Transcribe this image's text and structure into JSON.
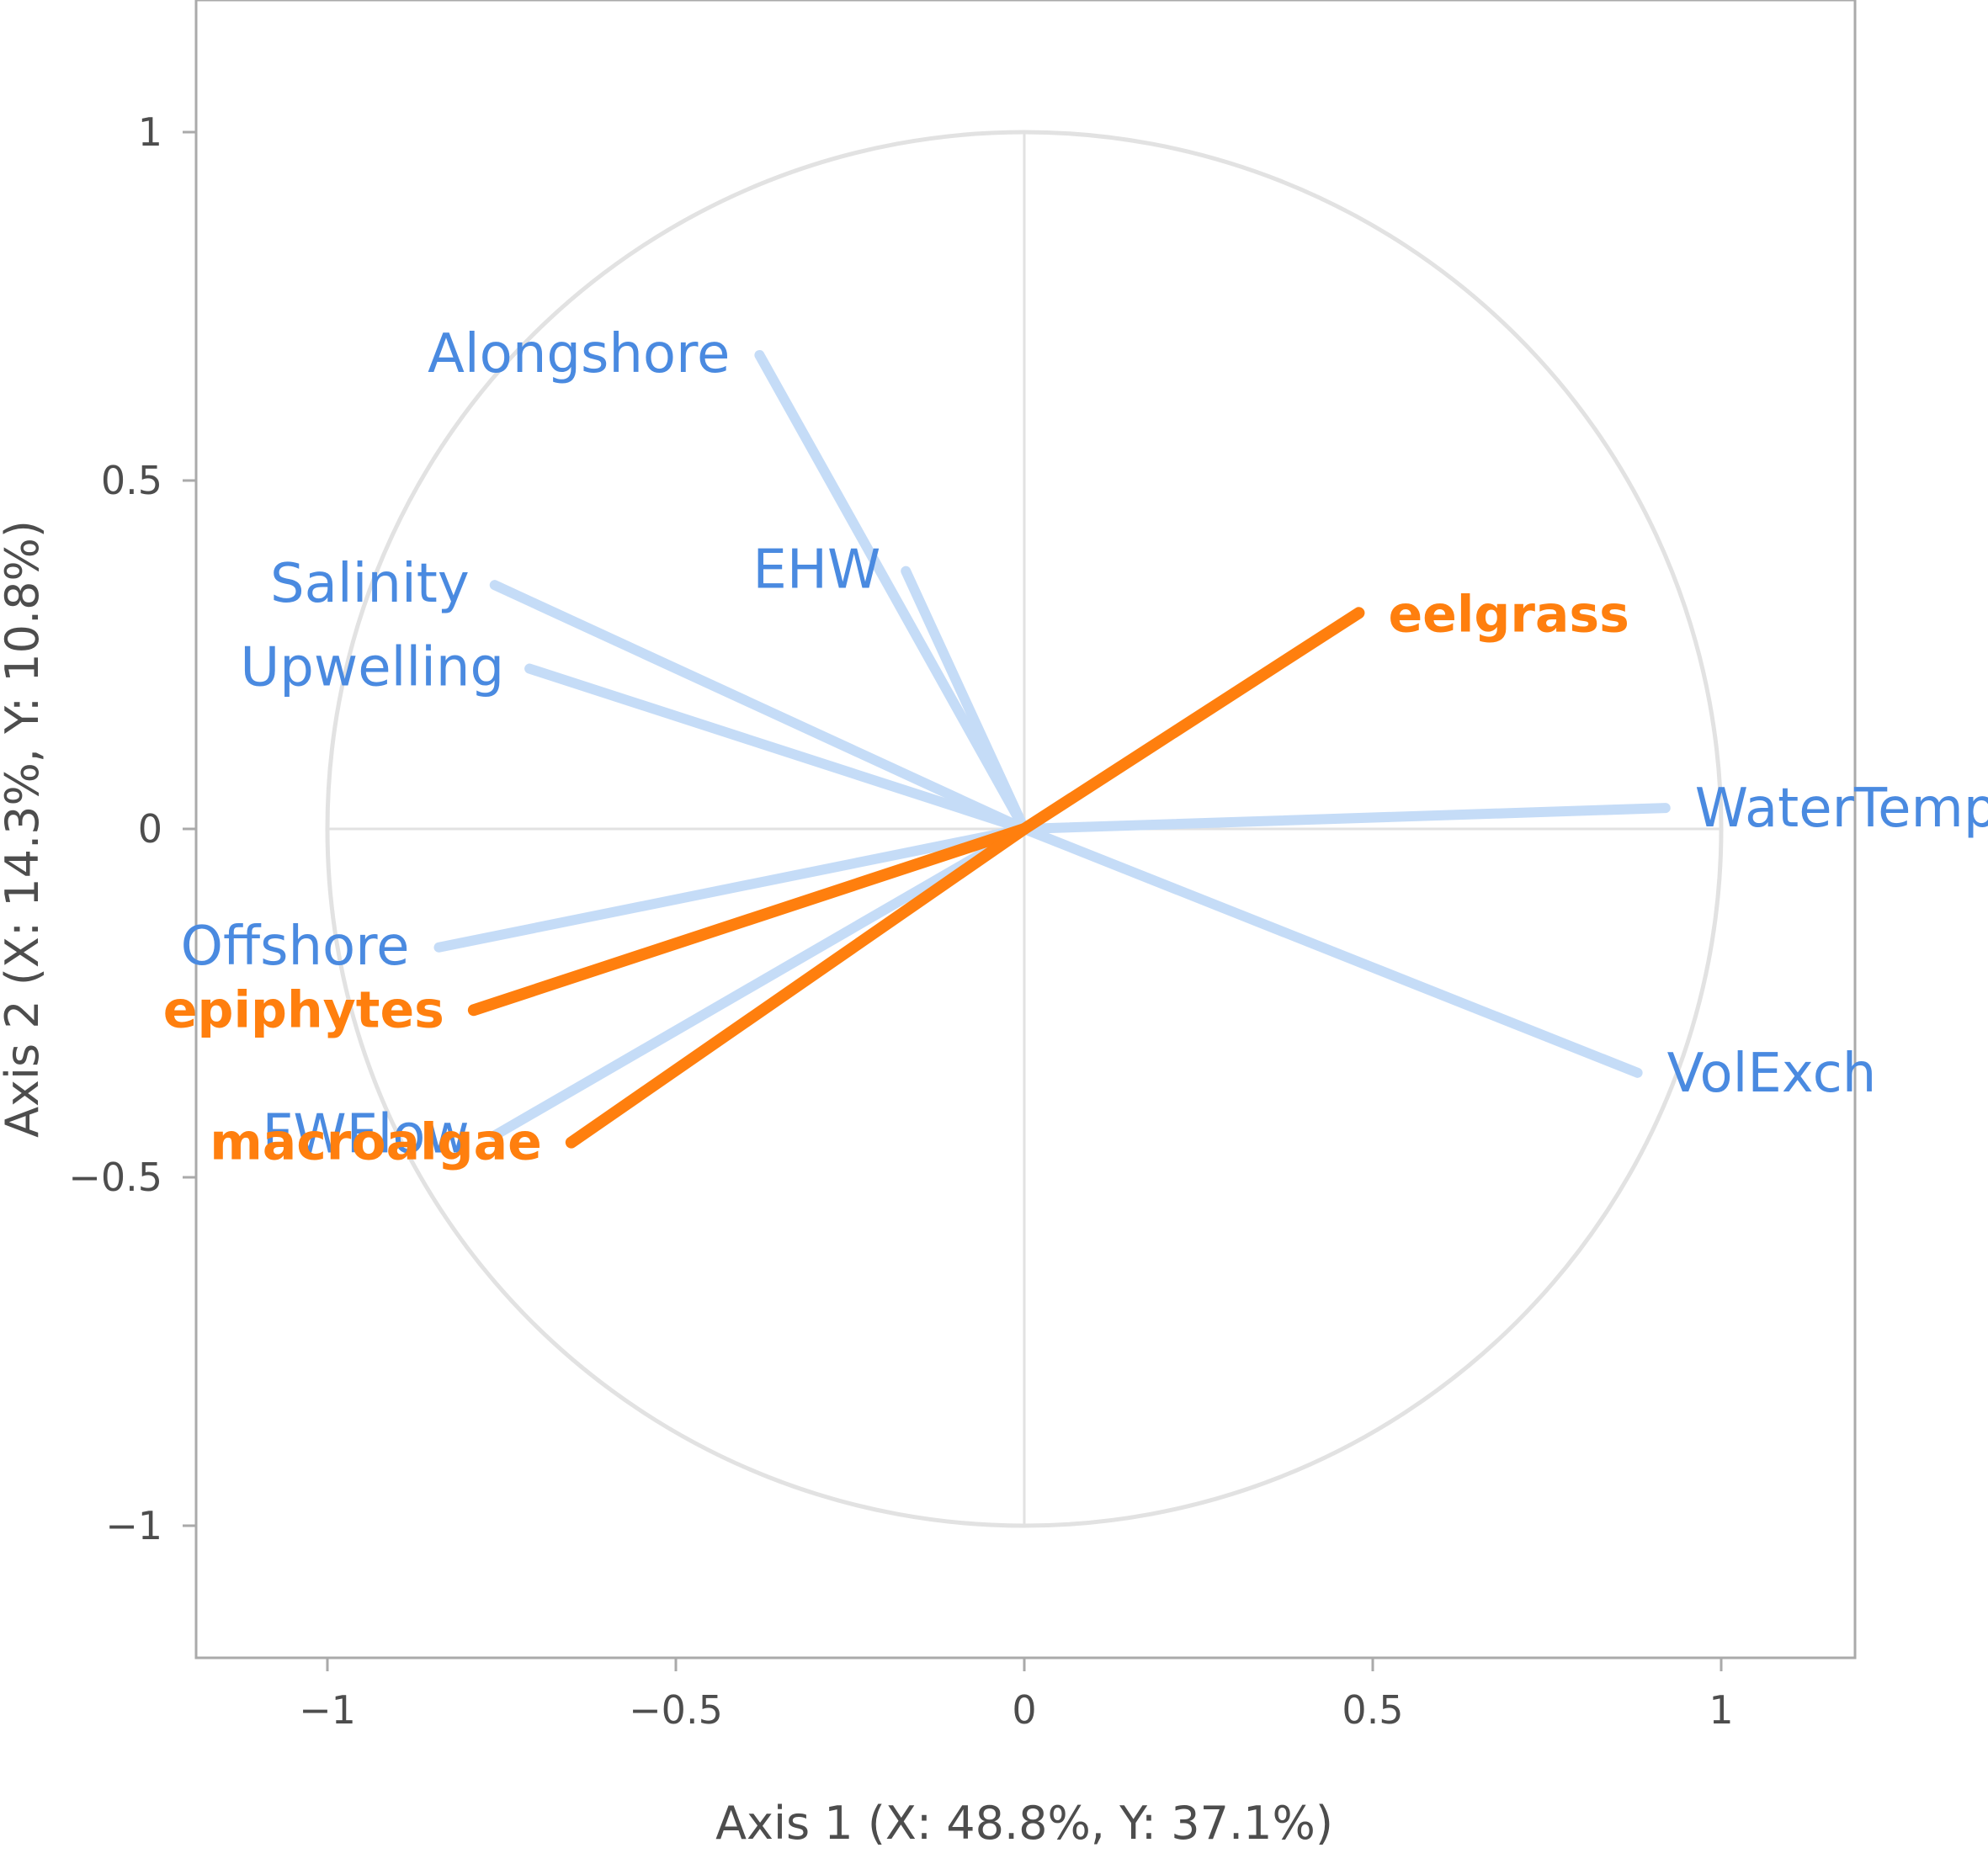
{
  "chart_data": {
    "type": "scatter",
    "subtype": "correlation-circle-biplot",
    "xlabel": "Axis 1 (X: 48.8%, Y: 37.1%)",
    "ylabel": "Axis 2 (X: 14.3%, Y: 10.8%)",
    "xlim": [
      -1.19,
      1.19
    ],
    "ylim": [
      -1.19,
      1.19
    ],
    "x_ticks": [
      -1,
      -0.5,
      0,
      0.5,
      1
    ],
    "y_ticks": [
      -1,
      -0.5,
      0,
      0.5,
      1
    ],
    "x_tick_labels": [
      "−1",
      "−0.5",
      "0",
      "0.5",
      "1"
    ],
    "y_tick_labels": [
      "−1",
      "−0.5",
      "0",
      "0.5",
      "1"
    ],
    "unit_circle_radius": 1,
    "grid": "zero-lines",
    "colors": {
      "explanatory": "#c5dcf7",
      "explanatory_label": "#4a8ae0",
      "response": "#ff7f0e",
      "circle": "#e2e2e2",
      "frame": "#aaaaaa",
      "zero_line": "#e2e2e2"
    },
    "series": [
      {
        "group": "explanatory",
        "points": [
          {
            "label": "Alongshore",
            "x": -0.38,
            "y": 0.68
          },
          {
            "label": "EHW",
            "x": -0.17,
            "y": 0.37
          },
          {
            "label": "Salinity",
            "x": -0.76,
            "y": 0.35
          },
          {
            "label": "Upwelling",
            "x": -0.71,
            "y": 0.23
          },
          {
            "label": "WaterTemp",
            "x": 0.92,
            "y": 0.03
          },
          {
            "label": "Offshore",
            "x": -0.84,
            "y": -0.17
          },
          {
            "label": "VolExch",
            "x": 0.88,
            "y": -0.35
          },
          {
            "label": "FWFlow",
            "x": -0.76,
            "y": -0.44
          }
        ]
      },
      {
        "group": "response",
        "points": [
          {
            "label": "eelgrass",
            "x": 0.48,
            "y": 0.31
          },
          {
            "label": "epiphytes",
            "x": -0.79,
            "y": -0.26
          },
          {
            "label": "macroalgae",
            "x": -0.65,
            "y": -0.45
          }
        ]
      }
    ]
  }
}
